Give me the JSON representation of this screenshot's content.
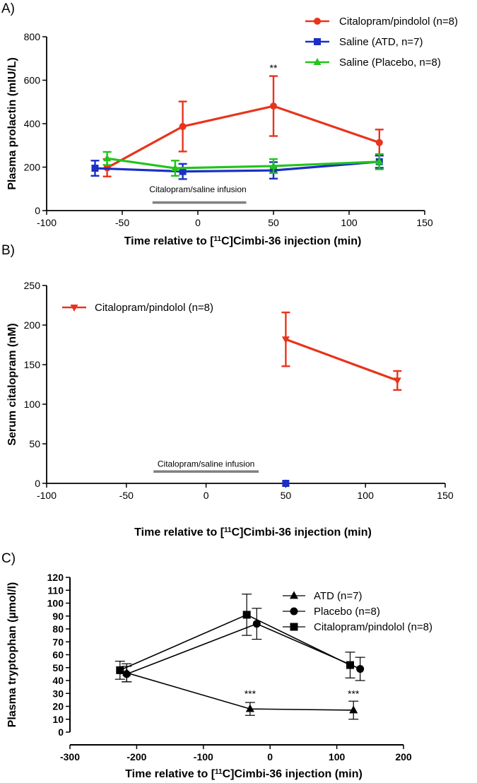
{
  "figure": {
    "panel_labels": [
      "A)",
      "B)",
      "C)"
    ]
  },
  "chart_data": [
    {
      "type": "line",
      "panel": "A)",
      "xlabel": "Time relative to [11C]Cimbi-36 injection (min)",
      "ylabel": "Plasma prolactin (mIU/L)",
      "xlim": [
        -100,
        150
      ],
      "ylim": [
        0,
        800
      ],
      "xticks": [
        -100,
        -50,
        0,
        50,
        100,
        150
      ],
      "yticks": [
        0,
        200,
        400,
        600,
        800
      ],
      "legend_position": "top-right",
      "series": [
        {
          "name": "Citalopram/pindolol (n=8)",
          "color": "#e8341c",
          "marker": "circle",
          "x": [
            -60,
            -10,
            50,
            120
          ],
          "y": [
            197,
            387,
            481,
            313
          ],
          "err": [
            40,
            115,
            138,
            60
          ]
        },
        {
          "name": "Saline (ATD, n=7)",
          "color": "#1c2fc4",
          "marker": "square",
          "x": [
            -68,
            -10,
            50,
            120
          ],
          "y": [
            195,
            180,
            185,
            225
          ],
          "err": [
            35,
            35,
            38,
            28
          ]
        },
        {
          "name": "Saline (Placebo, n=8)",
          "color": "#22c41c",
          "marker": "triangle-up",
          "x": [
            -60,
            -15,
            50,
            120
          ],
          "y": [
            240,
            195,
            205,
            225
          ],
          "err": [
            30,
            35,
            32,
            35
          ]
        }
      ],
      "annotations": [
        {
          "text": "**",
          "x": 50,
          "y": 640
        },
        {
          "text": "Citalopram/saline infusion",
          "x": 0,
          "y": 85
        }
      ],
      "bars": [
        {
          "x0": -30,
          "x1": 32,
          "y": 37
        }
      ]
    },
    {
      "type": "line",
      "panel": "B)",
      "xlabel": "Time relative to [11C]Cimbi-36 injection (min)",
      "ylabel": "Serum citalopram (nM)",
      "xlim": [
        -100,
        150
      ],
      "ylim": [
        0,
        250
      ],
      "xticks": [
        -100,
        -50,
        0,
        50,
        100,
        150
      ],
      "yticks": [
        0,
        50,
        100,
        150,
        200,
        250
      ],
      "legend_position": "top-left",
      "series": [
        {
          "name": "Citalopram/pindolol (n=8)",
          "color": "#e8341c",
          "marker": "triangle-down",
          "x": [
            50,
            120
          ],
          "y": [
            182,
            130
          ],
          "err": [
            34,
            12
          ]
        },
        {
          "name": "",
          "color": "#22c41c",
          "marker": "triangle-up",
          "x": [
            50
          ],
          "y": [
            0
          ],
          "err": [
            0
          ]
        },
        {
          "name": "",
          "color": "#1c2fc4",
          "marker": "square",
          "x": [
            50
          ],
          "y": [
            0
          ],
          "err": [
            0
          ]
        }
      ],
      "annotations": [
        {
          "text": "Citalopram/saline infusion",
          "x": 0,
          "y": 21
        }
      ],
      "bars": [
        {
          "x0": -33,
          "x1": 33,
          "y": 15
        }
      ]
    },
    {
      "type": "line",
      "panel": "C)",
      "xlabel": "Time relative to [11C]Cimbi-36 injection (min)",
      "ylabel": "Plasma tryptophan (µmol/l)",
      "xlim": [
        -300,
        200
      ],
      "ylim": [
        0,
        120
      ],
      "xticks": [
        -300,
        -200,
        -100,
        0,
        100,
        200
      ],
      "yticks": [
        0,
        10,
        20,
        30,
        40,
        50,
        60,
        70,
        80,
        90,
        100,
        110,
        120
      ],
      "legend_position": "top-right",
      "series": [
        {
          "name": "ATD (n=7)",
          "color": "#000000",
          "marker": "triangle-up",
          "x": [
            -215,
            -30,
            125
          ],
          "y": [
            46,
            18,
            17
          ],
          "err": [
            7,
            5,
            7
          ]
        },
        {
          "name": "Placebo (n=8)",
          "color": "#000000",
          "marker": "circle",
          "x": [
            -215,
            -20,
            135
          ],
          "y": [
            45,
            84,
            49
          ],
          "err": [
            6,
            12,
            9
          ]
        },
        {
          "name": "Citalopram/pindolol (n=8)",
          "color": "#000000",
          "marker": "square",
          "x": [
            -225,
            -35,
            120
          ],
          "y": [
            48,
            91,
            52
          ],
          "err": [
            7,
            16,
            10
          ]
        }
      ],
      "annotations": [
        {
          "text": "***",
          "x": -30,
          "y": 27
        },
        {
          "text": "***",
          "x": 125,
          "y": 27
        }
      ]
    }
  ]
}
